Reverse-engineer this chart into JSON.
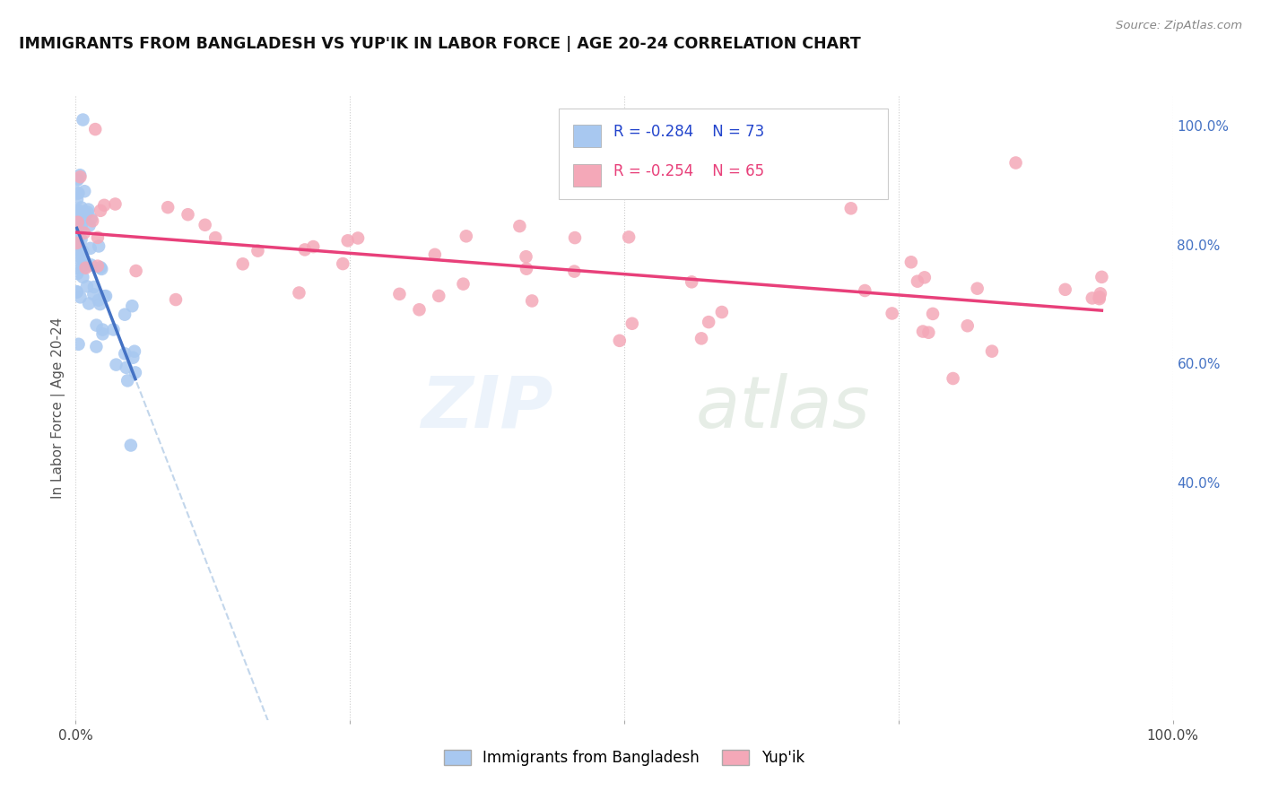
{
  "title": "IMMIGRANTS FROM BANGLADESH VS YUP'IK IN LABOR FORCE | AGE 20-24 CORRELATION CHART",
  "source": "Source: ZipAtlas.com",
  "ylabel": "In Labor Force | Age 20-24",
  "xlim": [
    0.0,
    1.0
  ],
  "ylim": [
    0.0,
    1.05
  ],
  "y_tick_labels_right": [
    "40.0%",
    "60.0%",
    "80.0%",
    "100.0%"
  ],
  "y_tick_vals_right": [
    0.4,
    0.6,
    0.8,
    1.0
  ],
  "legend_label1": "Immigrants from Bangladesh",
  "legend_label2": "Yup'ik",
  "R1": -0.284,
  "N1": 73,
  "R2": -0.254,
  "N2": 65,
  "color_bangladesh": "#a8c8f0",
  "color_yupik": "#f4a8b8",
  "color_trendline1": "#4472c4",
  "color_trendline2": "#e8407a",
  "color_trendline_dashed": "#b8cfe8",
  "background_color": "#ffffff",
  "watermark_zip": "ZIP",
  "watermark_atlas": "atlas",
  "bang_intercept": 0.83,
  "bang_slope": -4.5,
  "yup_intercept": 0.82,
  "yup_slope": -0.155
}
